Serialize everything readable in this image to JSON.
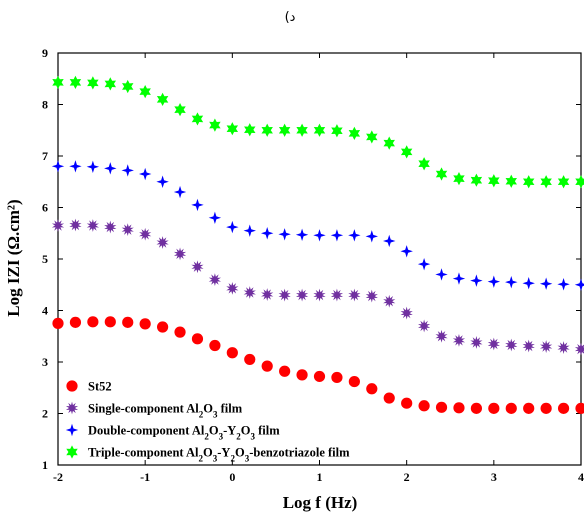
{
  "chart_data": {
    "type": "scatter",
    "panel_label": "د)",
    "xlabel": "Log f (Hz)",
    "ylabel": "Log IZI (Ω.cm²)",
    "xlim": [
      -2,
      4
    ],
    "ylim": [
      1,
      9
    ],
    "x_ticks": [
      "-2",
      "-1",
      "0",
      "1",
      "2",
      "3",
      "4"
    ],
    "y_ticks": [
      "1",
      "2",
      "3",
      "4",
      "5",
      "6",
      "7",
      "8",
      "9"
    ],
    "grid": false,
    "legend_position": "bottom-left",
    "series": [
      {
        "name": "St52",
        "legend_html": "St52",
        "marker": "circle",
        "color": "#ff0000",
        "points": [
          [
            -2,
            3.75
          ],
          [
            -1.8,
            3.77
          ],
          [
            -1.6,
            3.78
          ],
          [
            -1.4,
            3.78
          ],
          [
            -1.2,
            3.77
          ],
          [
            -1.0,
            3.74
          ],
          [
            -0.8,
            3.68
          ],
          [
            -0.6,
            3.58
          ],
          [
            -0.4,
            3.45
          ],
          [
            -0.2,
            3.32
          ],
          [
            0,
            3.18
          ],
          [
            0.2,
            3.05
          ],
          [
            0.4,
            2.92
          ],
          [
            0.6,
            2.82
          ],
          [
            0.8,
            2.75
          ],
          [
            1.0,
            2.72
          ],
          [
            1.2,
            2.7
          ],
          [
            1.4,
            2.62
          ],
          [
            1.6,
            2.48
          ],
          [
            1.8,
            2.3
          ],
          [
            2.0,
            2.2
          ],
          [
            2.2,
            2.15
          ],
          [
            2.4,
            2.12
          ],
          [
            2.6,
            2.11
          ],
          [
            2.8,
            2.1
          ],
          [
            3.0,
            2.1
          ],
          [
            3.2,
            2.1
          ],
          [
            3.4,
            2.1
          ],
          [
            3.6,
            2.1
          ],
          [
            3.8,
            2.1
          ],
          [
            4.0,
            2.1
          ]
        ]
      },
      {
        "name": "Single-component Al2O3 film",
        "legend_parts": [
          [
            "Single-component Al",
            ""
          ],
          [
            "2",
            "sub"
          ],
          [
            "O",
            ""
          ],
          [
            "3",
            "sub"
          ],
          [
            " film",
            ""
          ]
        ],
        "marker": "burst",
        "color": "#7030a0",
        "points": [
          [
            -2,
            5.65
          ],
          [
            -1.8,
            5.66
          ],
          [
            -1.6,
            5.65
          ],
          [
            -1.4,
            5.62
          ],
          [
            -1.2,
            5.57
          ],
          [
            -1.0,
            5.48
          ],
          [
            -0.8,
            5.32
          ],
          [
            -0.6,
            5.1
          ],
          [
            -0.4,
            4.85
          ],
          [
            -0.2,
            4.6
          ],
          [
            0,
            4.43
          ],
          [
            0.2,
            4.35
          ],
          [
            0.4,
            4.31
          ],
          [
            0.6,
            4.3
          ],
          [
            0.8,
            4.3
          ],
          [
            1.0,
            4.3
          ],
          [
            1.2,
            4.3
          ],
          [
            1.4,
            4.3
          ],
          [
            1.6,
            4.28
          ],
          [
            1.8,
            4.18
          ],
          [
            2.0,
            3.95
          ],
          [
            2.2,
            3.7
          ],
          [
            2.4,
            3.5
          ],
          [
            2.6,
            3.42
          ],
          [
            2.8,
            3.38
          ],
          [
            3.0,
            3.35
          ],
          [
            3.2,
            3.33
          ],
          [
            3.4,
            3.31
          ],
          [
            3.6,
            3.3
          ],
          [
            3.8,
            3.28
          ],
          [
            4.0,
            3.25
          ]
        ]
      },
      {
        "name": "Double-component Al2O3-Y2O3 film",
        "legend_parts": [
          [
            "Double-component Al",
            ""
          ],
          [
            "2",
            "sub"
          ],
          [
            "O",
            ""
          ],
          [
            "3",
            "sub"
          ],
          [
            "-Y",
            ""
          ],
          [
            "2",
            "sub"
          ],
          [
            "O",
            ""
          ],
          [
            "3",
            "sub"
          ],
          [
            " film",
            ""
          ]
        ],
        "marker": "star4",
        "color": "#0000ff",
        "points": [
          [
            -2,
            6.8
          ],
          [
            -1.8,
            6.8
          ],
          [
            -1.6,
            6.79
          ],
          [
            -1.4,
            6.76
          ],
          [
            -1.2,
            6.72
          ],
          [
            -1.0,
            6.65
          ],
          [
            -0.8,
            6.5
          ],
          [
            -0.6,
            6.3
          ],
          [
            -0.4,
            6.05
          ],
          [
            -0.2,
            5.8
          ],
          [
            0,
            5.62
          ],
          [
            0.2,
            5.55
          ],
          [
            0.4,
            5.5
          ],
          [
            0.6,
            5.48
          ],
          [
            0.8,
            5.47
          ],
          [
            1.0,
            5.46
          ],
          [
            1.2,
            5.46
          ],
          [
            1.4,
            5.46
          ],
          [
            1.6,
            5.44
          ],
          [
            1.8,
            5.35
          ],
          [
            2.0,
            5.15
          ],
          [
            2.2,
            4.9
          ],
          [
            2.4,
            4.7
          ],
          [
            2.6,
            4.62
          ],
          [
            2.8,
            4.58
          ],
          [
            3.0,
            4.56
          ],
          [
            3.2,
            4.55
          ],
          [
            3.4,
            4.53
          ],
          [
            3.6,
            4.52
          ],
          [
            3.8,
            4.51
          ],
          [
            4.0,
            4.5
          ]
        ]
      },
      {
        "name": "Triple-component Al2O3-Y2O3-benzotriazole film",
        "legend_parts": [
          [
            "Triple-component Al",
            ""
          ],
          [
            "2",
            "sub"
          ],
          [
            "O",
            ""
          ],
          [
            "3",
            "sub"
          ],
          [
            "-Y",
            ""
          ],
          [
            "2",
            "sub"
          ],
          [
            "O",
            ""
          ],
          [
            "3",
            "sub"
          ],
          [
            "-benzotriazole film",
            ""
          ]
        ],
        "marker": "star6",
        "color": "#00ff00",
        "points": [
          [
            -2,
            8.43
          ],
          [
            -1.8,
            8.43
          ],
          [
            -1.6,
            8.42
          ],
          [
            -1.4,
            8.4
          ],
          [
            -1.2,
            8.35
          ],
          [
            -1.0,
            8.25
          ],
          [
            -0.8,
            8.1
          ],
          [
            -0.6,
            7.9
          ],
          [
            -0.4,
            7.72
          ],
          [
            -0.2,
            7.6
          ],
          [
            0,
            7.53
          ],
          [
            0.2,
            7.51
          ],
          [
            0.4,
            7.5
          ],
          [
            0.6,
            7.5
          ],
          [
            0.8,
            7.5
          ],
          [
            1.0,
            7.5
          ],
          [
            1.2,
            7.49
          ],
          [
            1.4,
            7.44
          ],
          [
            1.6,
            7.37
          ],
          [
            1.8,
            7.25
          ],
          [
            2.0,
            7.08
          ],
          [
            2.2,
            6.85
          ],
          [
            2.4,
            6.65
          ],
          [
            2.6,
            6.56
          ],
          [
            2.8,
            6.53
          ],
          [
            3.0,
            6.52
          ],
          [
            3.2,
            6.51
          ],
          [
            3.4,
            6.5
          ],
          [
            3.6,
            6.5
          ],
          [
            3.8,
            6.5
          ],
          [
            4.0,
            6.5
          ]
        ]
      }
    ]
  }
}
